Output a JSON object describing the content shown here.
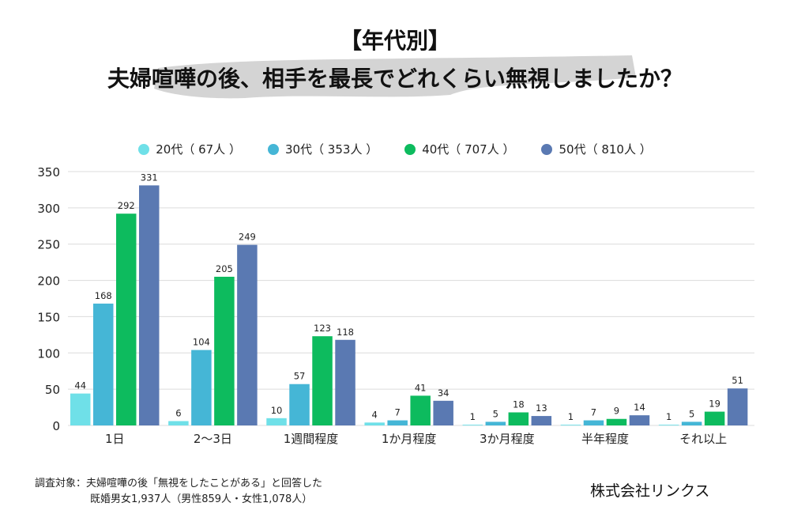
{
  "title": {
    "line1": "【年代別】",
    "line2": "夫婦喧嘩の後、相手を最長でどれくらい無視しましたか？"
  },
  "colors": {
    "series": [
      "#6fe0e8",
      "#45b6d6",
      "#0dbb5e",
      "#5a79b2"
    ],
    "grid": "#dcdcdc",
    "brush": "#d4d4d4"
  },
  "legend": [
    {
      "label": "20代（ 67人 ）"
    },
    {
      "label": "30代（ 353人 ）"
    },
    {
      "label": "40代（ 707人 ）"
    },
    {
      "label": "50代（ 810人 ）"
    }
  ],
  "chart_data": {
    "type": "bar",
    "categories": [
      "1日",
      "2～3日",
      "1週間程度",
      "1か月程度",
      "3か月程度",
      "半年程度",
      "それ以上"
    ],
    "series": [
      {
        "name": "20代（ 67人 ）",
        "values": [
          44,
          6,
          10,
          4,
          1,
          1,
          1
        ]
      },
      {
        "name": "30代（ 353人 ）",
        "values": [
          168,
          104,
          57,
          7,
          5,
          7,
          5
        ]
      },
      {
        "name": "40代（ 707人 ）",
        "values": [
          292,
          205,
          123,
          41,
          18,
          9,
          19
        ]
      },
      {
        "name": "50代（ 810人 ）",
        "values": [
          331,
          249,
          118,
          34,
          13,
          14,
          51
        ]
      }
    ],
    "yticks": [
      0,
      50,
      100,
      150,
      200,
      250,
      300,
      350
    ],
    "ylim": [
      0,
      350
    ],
    "grid": true,
    "legend_position": "top"
  },
  "note": {
    "line1": "調査対象：夫婦喧嘩の後「無視をしたことがある」と回答した",
    "line2": "既婚男女1,937人（男性859人・女性1,078人）"
  },
  "company": "株式会社リンクス"
}
